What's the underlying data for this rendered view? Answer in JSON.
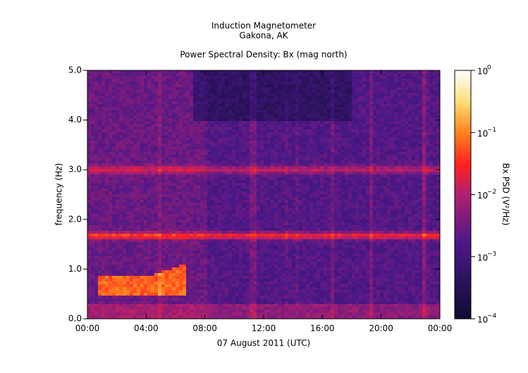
{
  "chart_data": {
    "type": "spectrogram",
    "title": "Induction Magnetometer",
    "subtitle": "Gakona, AK",
    "plot_title": "Power Spectral Density: Bx (mag north)",
    "xlabel": "07 August 2011 (UTC)",
    "ylabel": "frequency (Hz)",
    "xlim": [
      0,
      24
    ],
    "xticks": [
      {
        "value": 0,
        "label": "00:00"
      },
      {
        "value": 4,
        "label": "04:00"
      },
      {
        "value": 8,
        "label": "08:00"
      },
      {
        "value": 12,
        "label": "12:00"
      },
      {
        "value": 16,
        "label": "16:00"
      },
      {
        "value": 20,
        "label": "20:00"
      },
      {
        "value": 24,
        "label": "00:00"
      }
    ],
    "ylim": [
      0,
      5
    ],
    "yticks": [
      {
        "value": 0,
        "label": "0.0"
      },
      {
        "value": 1,
        "label": "1.0"
      },
      {
        "value": 2,
        "label": "2.0"
      },
      {
        "value": 3,
        "label": "3.0"
      },
      {
        "value": 4,
        "label": "4.0"
      },
      {
        "value": 5,
        "label": "5.0"
      }
    ],
    "colorbar": {
      "label": "Bx PSD (V²/Hz)",
      "log": true,
      "lim": [
        0.0001,
        1
      ],
      "ticks": [
        {
          "value": 0.0001,
          "label": "10",
          "exponent": "−4"
        },
        {
          "value": 0.001,
          "label": "10",
          "exponent": "−3"
        },
        {
          "value": 0.01,
          "label": "10",
          "exponent": "−2"
        },
        {
          "value": 0.1,
          "label": "10",
          "exponent": "−1"
        },
        {
          "value": 1,
          "label": "10",
          "exponent": "0"
        }
      ]
    }
  }
}
